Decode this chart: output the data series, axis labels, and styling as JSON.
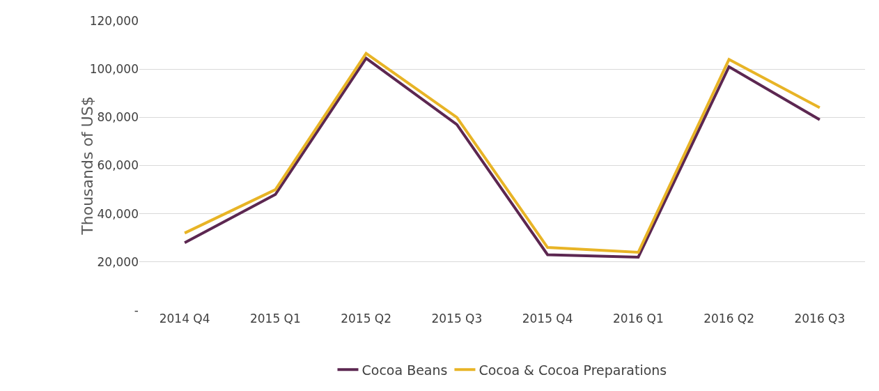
{
  "chart_data": {
    "type": "line",
    "ylabel": "Thousands of US$",
    "categories": [
      "2014 Q4",
      "2015 Q1",
      "2015 Q2",
      "2015 Q3",
      "2015 Q4",
      "2016 Q1",
      "2016 Q2",
      "2016 Q3"
    ],
    "series": [
      {
        "name": "Cocoa Beans",
        "color": "#5c2751",
        "values": [
          28000,
          48000,
          104500,
          77000,
          23000,
          22000,
          101000,
          79000
        ]
      },
      {
        "name": "Cocoa & Cocoa Preparations",
        "color": "#e8b426",
        "values": [
          32000,
          50000,
          106500,
          80000,
          26000,
          24000,
          104000,
          84000
        ]
      }
    ],
    "ylim": [
      0,
      120000
    ],
    "yticks": [
      {
        "value": 0,
        "label": "-"
      },
      {
        "value": 20000,
        "label": "20,000"
      },
      {
        "value": 40000,
        "label": "40,000"
      },
      {
        "value": 60000,
        "label": "60,000"
      },
      {
        "value": 80000,
        "label": "80,000"
      },
      {
        "value": 100000,
        "label": "100,000"
      },
      {
        "value": 120000,
        "label": "120,000"
      }
    ],
    "grid": "y",
    "legend": "bottom",
    "marker": "none",
    "line_style": "solid"
  }
}
